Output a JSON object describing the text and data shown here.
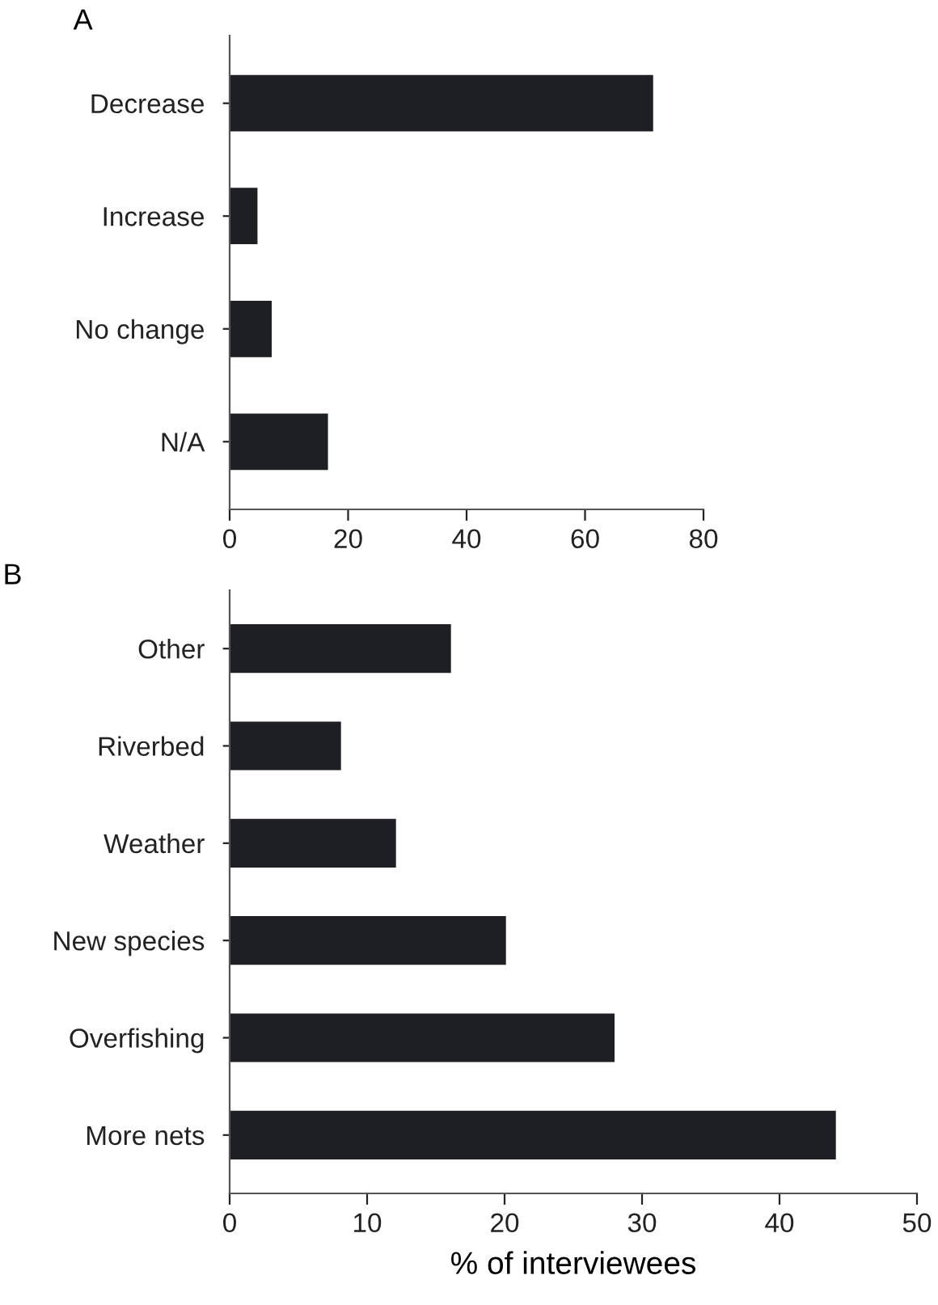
{
  "chart_data": [
    {
      "type": "bar",
      "title": "A",
      "orientation": "horizontal",
      "categories": [
        "Decrease",
        "Increase",
        "No change",
        "N/A"
      ],
      "values": [
        71.5,
        4.7,
        7.1,
        16.6
      ],
      "color": "#1e1f23",
      "xlim": [
        0,
        80
      ],
      "xticks": [
        0,
        20,
        40,
        60,
        80
      ],
      "grid": false,
      "legend": false
    },
    {
      "type": "bar",
      "title": "B",
      "orientation": "horizontal",
      "xlabel": "% of interviewees",
      "categories": [
        "Other",
        "Riverbed",
        "Weather",
        "New species",
        "Overfishing",
        "More nets"
      ],
      "values": [
        16.1,
        8.1,
        12.1,
        20.1,
        28.0,
        44.1
      ],
      "color": "#1e1f23",
      "xlim": [
        0,
        50
      ],
      "xticks": [
        0,
        10,
        20,
        30,
        40,
        50
      ],
      "grid": false,
      "legend": false
    }
  ]
}
